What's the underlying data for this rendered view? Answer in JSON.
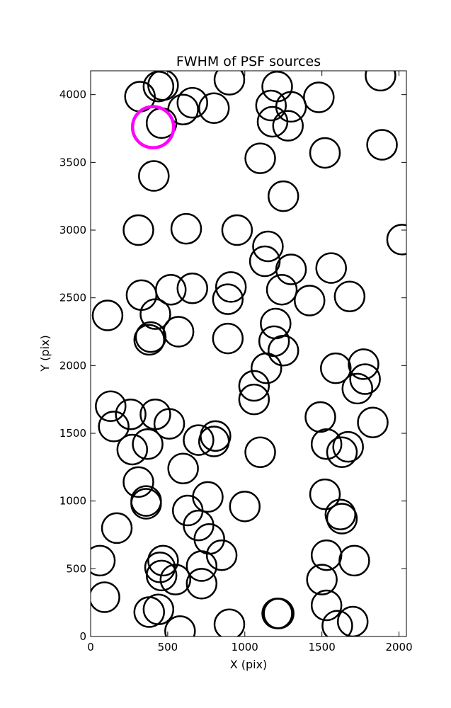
{
  "chart_data": {
    "type": "scatter",
    "title": "FWHM of PSF sources",
    "xlabel": "X (pix)",
    "ylabel": "Y (pix)",
    "xlim": [
      0,
      2048
    ],
    "ylim": [
      0,
      4176
    ],
    "xticks": [
      0,
      500,
      1000,
      1500,
      2000
    ],
    "yticks": [
      0,
      500,
      1000,
      1500,
      2000,
      2500,
      3000,
      3500,
      4000
    ],
    "grid": false,
    "legend": false,
    "marker": "open circle",
    "marker_color": "#000000",
    "highlight_color": "#ff00ff",
    "points": [
      [
        320,
        3985
      ],
      [
        440,
        4060
      ],
      [
        470,
        4070
      ],
      [
        600,
        3890
      ],
      [
        660,
        3940
      ],
      [
        800,
        3900
      ],
      [
        900,
        4110
      ],
      [
        1210,
        4060
      ],
      [
        1170,
        3920
      ],
      [
        1180,
        3800
      ],
      [
        1280,
        3770
      ],
      [
        1300,
        3910
      ],
      [
        1480,
        3980
      ],
      [
        1880,
        4140
      ],
      [
        460,
        3790
      ],
      [
        1100,
        3530
      ],
      [
        1520,
        3570
      ],
      [
        1890,
        3630
      ],
      [
        410,
        3400
      ],
      [
        1250,
        3250
      ],
      [
        310,
        3000
      ],
      [
        620,
        3010
      ],
      [
        950,
        3000
      ],
      [
        2020,
        2930
      ],
      [
        1150,
        2880
      ],
      [
        1130,
        2770
      ],
      [
        1300,
        2710
      ],
      [
        1560,
        2720
      ],
      [
        330,
        2520
      ],
      [
        520,
        2560
      ],
      [
        660,
        2570
      ],
      [
        910,
        2580
      ],
      [
        890,
        2490
      ],
      [
        1240,
        2560
      ],
      [
        1420,
        2480
      ],
      [
        1680,
        2510
      ],
      [
        110,
        2370
      ],
      [
        420,
        2380
      ],
      [
        570,
        2250
      ],
      [
        390,
        2210
      ],
      [
        380,
        2190
      ],
      [
        890,
        2200
      ],
      [
        1200,
        2310
      ],
      [
        1190,
        2180
      ],
      [
        1250,
        2110
      ],
      [
        1140,
        1980
      ],
      [
        1590,
        1980
      ],
      [
        1770,
        2010
      ],
      [
        1780,
        1900
      ],
      [
        1730,
        1830
      ],
      [
        1060,
        1850
      ],
      [
        1060,
        1750
      ],
      [
        130,
        1700
      ],
      [
        150,
        1550
      ],
      [
        260,
        1640
      ],
      [
        420,
        1640
      ],
      [
        510,
        1570
      ],
      [
        1490,
        1620
      ],
      [
        1830,
        1580
      ],
      [
        270,
        1380
      ],
      [
        370,
        1420
      ],
      [
        700,
        1450
      ],
      [
        810,
        1480
      ],
      [
        800,
        1440
      ],
      [
        1100,
        1360
      ],
      [
        1530,
        1420
      ],
      [
        1630,
        1360
      ],
      [
        1670,
        1400
      ],
      [
        600,
        1240
      ],
      [
        310,
        1140
      ],
      [
        360,
        1000
      ],
      [
        360,
        980
      ],
      [
        760,
        1030
      ],
      [
        1520,
        1050
      ],
      [
        1000,
        960
      ],
      [
        630,
        930
      ],
      [
        700,
        820
      ],
      [
        1620,
        900
      ],
      [
        1630,
        870
      ],
      [
        170,
        800
      ],
      [
        770,
        720
      ],
      [
        60,
        560
      ],
      [
        850,
        600
      ],
      [
        1530,
        600
      ],
      [
        1710,
        560
      ],
      [
        470,
        560
      ],
      [
        450,
        510
      ],
      [
        460,
        450
      ],
      [
        550,
        420
      ],
      [
        720,
        520
      ],
      [
        720,
        390
      ],
      [
        1500,
        420
      ],
      [
        1530,
        230
      ],
      [
        90,
        290
      ],
      [
        380,
        180
      ],
      [
        440,
        200
      ],
      [
        580,
        40
      ],
      [
        900,
        90
      ],
      [
        1210,
        170
      ],
      [
        1220,
        170
      ],
      [
        1600,
        80
      ],
      [
        1700,
        110
      ]
    ],
    "highlight_points": [
      [
        405,
        3760
      ]
    ]
  }
}
